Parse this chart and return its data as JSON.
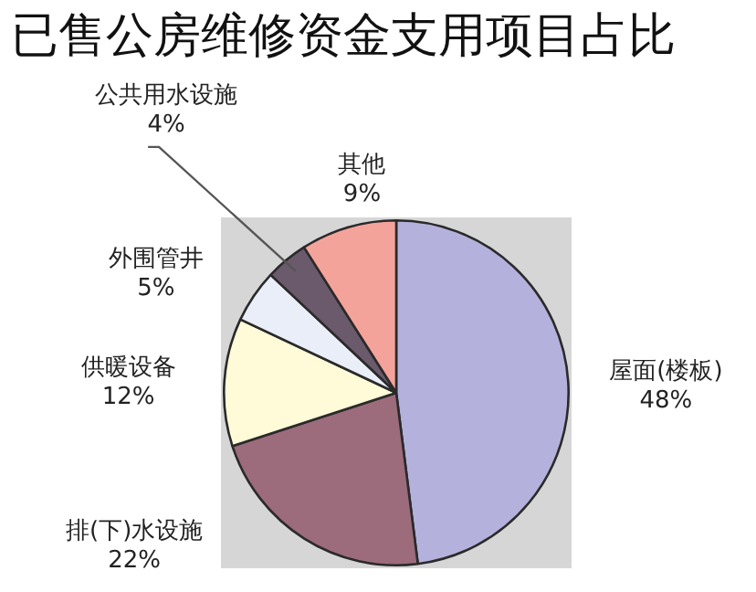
{
  "chart_data": {
    "type": "pie",
    "title": "已售公房维修资金支用项目占比",
    "categories": [
      "屋面(楼板)",
      "排(下)水设施",
      "供暖设备",
      "外围管井",
      "公共用水设施",
      "其他"
    ],
    "values": [
      48,
      22,
      12,
      5,
      4,
      9
    ],
    "value_labels": [
      "48%",
      "22%",
      "12%",
      "5%",
      "4%",
      "9%"
    ],
    "colors": [
      "#b4b2dc",
      "#9c6b7c",
      "#fffbd8",
      "#e9eef9",
      "#6b5a6b",
      "#f4a39b"
    ],
    "legend": false
  }
}
